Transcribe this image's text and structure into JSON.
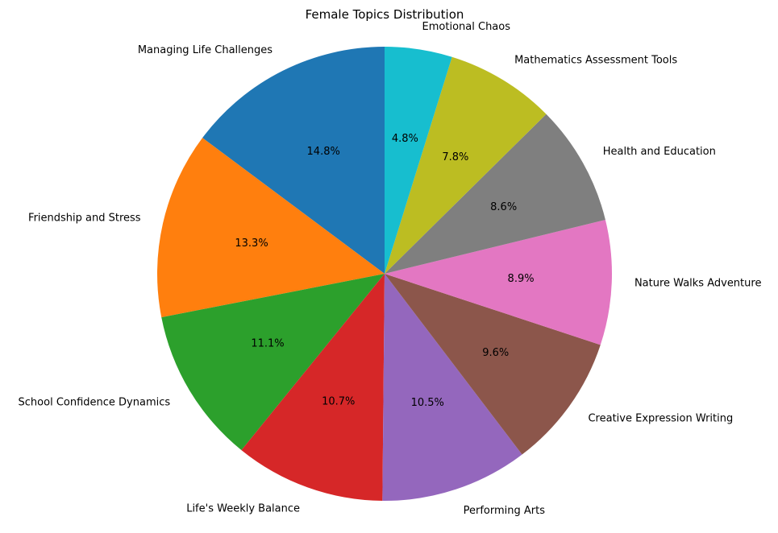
{
  "chart_data": {
    "type": "pie",
    "title": "Female Topics Distribution",
    "labels": [
      "Managing Life Challenges",
      "Friendship and Stress",
      "School Confidence Dynamics",
      "Life's Weekly Balance",
      "Performing Arts",
      "Creative Expression Writing",
      "Nature Walks Adventure",
      "Health and Education",
      "Mathematics Assessment Tools",
      "Emotional Chaos"
    ],
    "values": [
      14.8,
      13.3,
      11.1,
      10.7,
      10.5,
      9.6,
      8.9,
      8.6,
      7.8,
      4.8
    ],
    "percent_labels": [
      "14.8%",
      "13.3%",
      "11.1%",
      "10.7%",
      "10.5%",
      "9.6%",
      "8.9%",
      "8.6%",
      "7.8%",
      "4.8%"
    ],
    "colors": [
      "#1f77b4",
      "#ff7f0e",
      "#2ca02c",
      "#d62728",
      "#9467bd",
      "#8c564b",
      "#e377c2",
      "#7f7f7f",
      "#bcbd22",
      "#17becf"
    ],
    "start_angle": 90,
    "direction": "counterclockwise",
    "legend": "none"
  }
}
